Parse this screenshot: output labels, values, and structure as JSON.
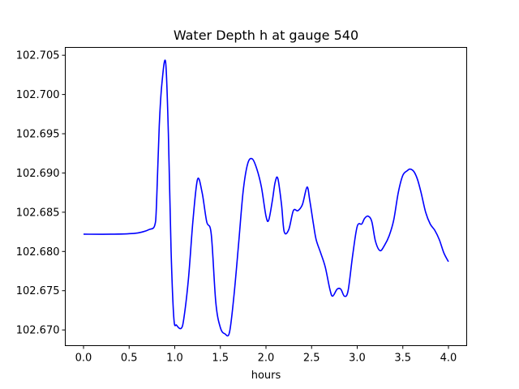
{
  "chart_data": {
    "type": "line",
    "title": "Water Depth h at gauge 540",
    "xlabel": "hours",
    "ylabel": "",
    "xlim": [
      -0.2,
      4.2
    ],
    "ylim": [
      102.668,
      102.706
    ],
    "xticks": [
      0.0,
      0.5,
      1.0,
      1.5,
      2.0,
      2.5,
      3.0,
      3.5,
      4.0
    ],
    "xtick_labels": [
      "0.0",
      "0.5",
      "1.0",
      "1.5",
      "2.0",
      "2.5",
      "3.0",
      "3.5",
      "4.0"
    ],
    "yticks": [
      102.67,
      102.675,
      102.68,
      102.685,
      102.69,
      102.695,
      102.7,
      102.705
    ],
    "ytick_labels": [
      "102.670",
      "102.675",
      "102.680",
      "102.685",
      "102.690",
      "102.695",
      "102.700",
      "102.705"
    ],
    "grid": false,
    "series": [
      {
        "color": "#0000ff",
        "x": [
          0.0,
          0.3,
          0.55,
          0.65,
          0.72,
          0.78,
          0.8,
          0.83,
          0.86,
          0.9,
          0.93,
          0.96,
          0.99,
          1.02,
          1.07,
          1.1,
          1.15,
          1.2,
          1.25,
          1.3,
          1.35,
          1.4,
          1.45,
          1.5,
          1.55,
          1.6,
          1.65,
          1.7,
          1.75,
          1.8,
          1.85,
          1.9,
          1.95,
          2.0,
          2.03,
          2.07,
          2.1,
          2.13,
          2.17,
          2.2,
          2.25,
          2.3,
          2.35,
          2.4,
          2.45,
          2.48,
          2.52,
          2.55,
          2.6,
          2.65,
          2.7,
          2.73,
          2.78,
          2.82,
          2.86,
          2.9,
          2.95,
          3.0,
          3.05,
          3.08,
          3.12,
          3.16,
          3.2,
          3.25,
          3.3,
          3.35,
          3.4,
          3.45,
          3.5,
          3.55,
          3.58,
          3.62,
          3.66,
          3.7,
          3.75,
          3.8,
          3.85,
          3.9,
          3.95,
          4.0
        ],
        "y": [
          102.6822,
          102.6822,
          102.6823,
          102.6825,
          102.6828,
          102.6833,
          102.686,
          102.696,
          102.7015,
          102.7041,
          102.695,
          102.68,
          102.6715,
          102.6706,
          102.6702,
          102.6715,
          102.6765,
          102.684,
          102.6892,
          102.6875,
          102.6838,
          102.6822,
          102.6735,
          102.6703,
          102.6695,
          102.6697,
          102.6745,
          102.681,
          102.6877,
          102.6912,
          102.6918,
          102.6905,
          102.6882,
          102.6845,
          102.684,
          102.6865,
          102.6888,
          102.6893,
          102.686,
          102.6825,
          102.6828,
          102.6852,
          102.6852,
          102.686,
          102.6882,
          102.6865,
          102.6835,
          102.6815,
          102.6798,
          102.678,
          102.6752,
          102.6743,
          102.6752,
          102.6752,
          102.6743,
          102.675,
          102.6795,
          102.6832,
          102.6835,
          102.6842,
          102.6845,
          102.6838,
          102.6813,
          102.6801,
          102.6808,
          102.682,
          102.684,
          102.6875,
          102.6897,
          102.6903,
          102.6905,
          102.6902,
          102.6892,
          102.6875,
          102.685,
          102.6835,
          102.6827,
          102.6815,
          102.6798,
          102.6787
        ]
      }
    ]
  }
}
